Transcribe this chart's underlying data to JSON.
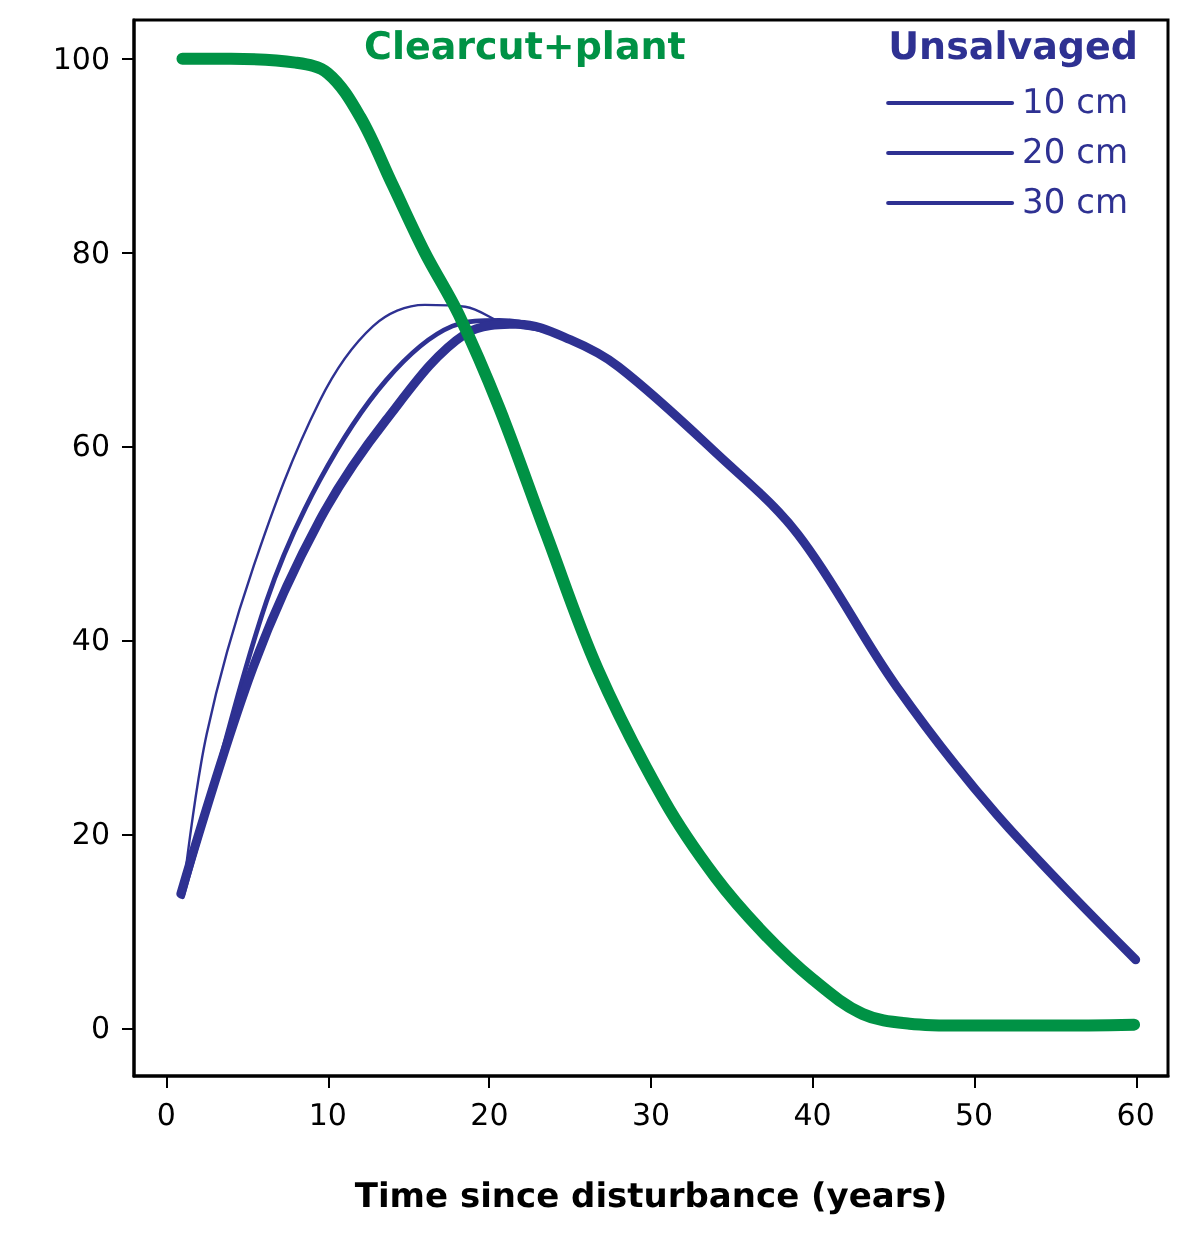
{
  "chart_data": {
    "type": "line",
    "xlabel": "Time since disturbance (years)",
    "legend_title": "Unsalvaged",
    "legend": "top right",
    "grid": false,
    "marker": "none",
    "line_style": "solid",
    "xlim": [
      -2,
      62
    ],
    "xticks": [
      0,
      10,
      20,
      30,
      40,
      50,
      60
    ],
    "ylim": [
      -5,
      104
    ],
    "yticks": [
      0,
      20,
      40,
      60,
      80,
      100
    ],
    "series": [
      {
        "name": "Clearcut+plant",
        "color": "#009245",
        "x": [
          1,
          4,
          8,
          10,
          12,
          14,
          16,
          18.1,
          20.6,
          23.5,
          26.7,
          30.8,
          34,
          37,
          40,
          43.1,
          46,
          49.3,
          55,
          59.9
        ],
        "values": [
          100,
          100,
          99.6,
          98.5,
          94,
          87,
          80,
          73.6,
          64,
          51,
          37,
          23.5,
          15.5,
          9.7,
          5,
          1.4,
          0.4,
          0.2,
          0.2,
          0.3
        ]
      },
      {
        "name": "10 cm",
        "color": "#2e3192",
        "x": [
          1,
          2.5,
          5.4,
          9.5,
          12.8,
          16,
          18.5,
          21,
          24,
          28,
          34.1,
          39.1,
          45.2,
          51.4,
          60
        ],
        "values": [
          13.5,
          30.3,
          47.6,
          64.7,
          72.4,
          74.6,
          74.4,
          72.6,
          71.5,
          68.2,
          59.2,
          50.9,
          35.2,
          22,
          7
        ]
      },
      {
        "name": "20 cm",
        "color": "#2e3192",
        "x": [
          1,
          2.1,
          6.2,
          9.5,
          13.6,
          17.7,
          20.6,
          24,
          28,
          34.1,
          39.1,
          45.2,
          51.4,
          60
        ],
        "values": [
          13.5,
          20,
          44,
          56.5,
          66.8,
          72.4,
          73,
          71.8,
          68.2,
          59.2,
          50.9,
          35.2,
          22,
          7
        ]
      },
      {
        "name": "30 cm",
        "color": "#2e3192",
        "x": [
          0.9,
          5.4,
          9.5,
          13.6,
          18.5,
          21.8,
          25,
          28,
          34.1,
          39.1,
          45.2,
          51.4,
          60
        ],
        "values": [
          13.8,
          37.3,
          52.4,
          62.7,
          71.6,
          72.6,
          71,
          68.2,
          59.2,
          50.9,
          35.2,
          22,
          7
        ]
      }
    ]
  }
}
